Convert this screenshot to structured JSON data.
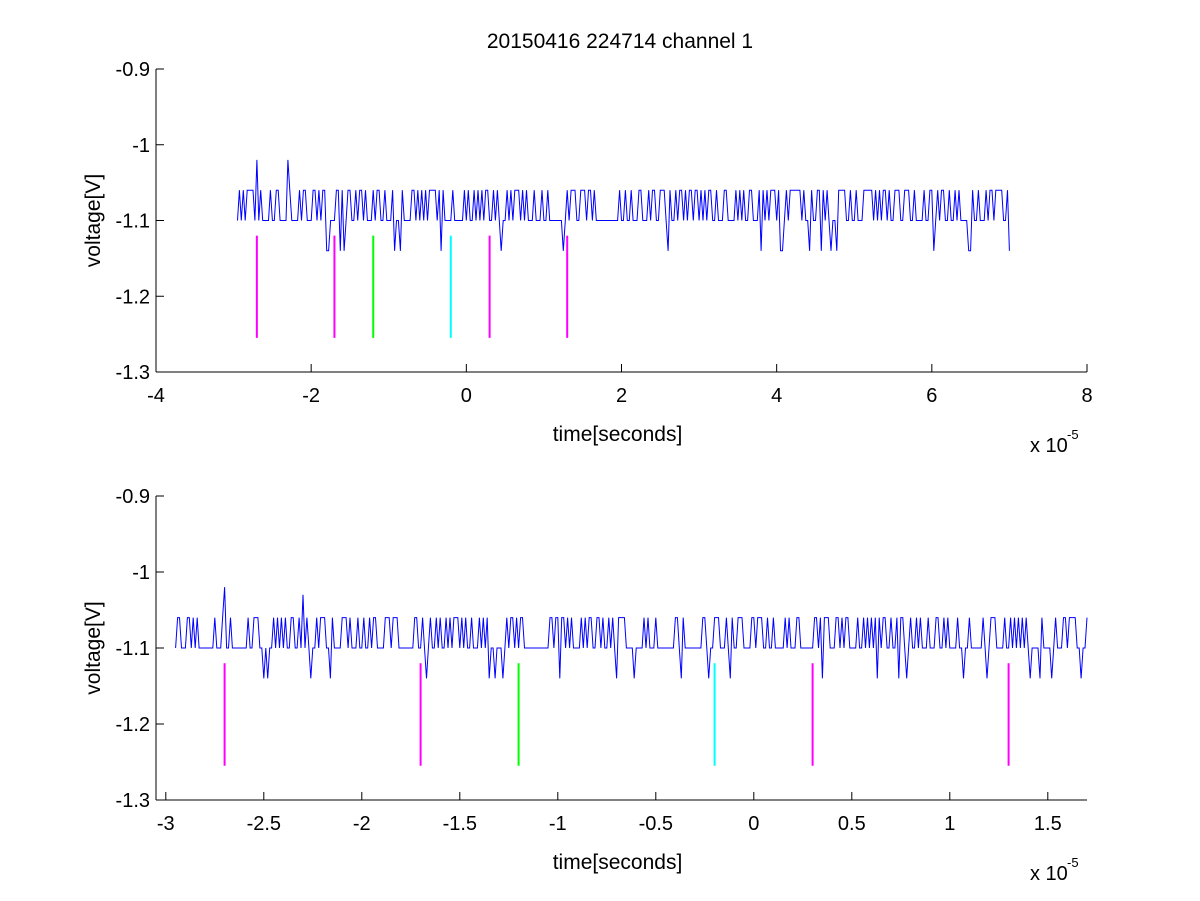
{
  "title": "20150416 224714 channel 1",
  "colors": {
    "signal": "#0000ff",
    "magenta": "#ff00ff",
    "green": "#00ff00",
    "cyan": "#00ffff",
    "axis": "#000000"
  },
  "chart_data": [
    {
      "type": "line",
      "xlabel": "time[seconds]",
      "ylabel": "voltage[V]",
      "x_multiplier": {
        "base": "x 10",
        "exponent": "-5"
      },
      "xlim": [
        -4,
        8
      ],
      "ylim": [
        -1.3,
        -0.9
      ],
      "xticks": [
        -4,
        -2,
        0,
        2,
        4,
        6,
        8
      ],
      "xtick_labels": [
        "-4",
        "-2",
        "0",
        "2",
        "4",
        "6",
        "8"
      ],
      "yticks": [
        -1.3,
        -1.2,
        -1.1,
        -1.0,
        -0.9
      ],
      "ytick_labels": [
        "-1.3",
        "-1.2",
        "-1.1",
        "-1",
        "-0.9"
      ],
      "series": [
        {
          "color": "#0000ff",
          "x_range": [
            -2.95,
            7.0
          ],
          "x_step": 0.025,
          "baseline": -1.1,
          "high": -1.06,
          "low_dip": -1.14,
          "spikes": [
            {
              "x": -2.7,
              "y": -1.02
            },
            {
              "x": -2.3,
              "y": -1.02
            }
          ]
        }
      ],
      "markers": [
        {
          "x": -2.7,
          "y_top": -1.12,
          "y_bottom": -1.255,
          "color": "#ff00ff"
        },
        {
          "x": -1.7,
          "y_top": -1.12,
          "y_bottom": -1.255,
          "color": "#ff00ff"
        },
        {
          "x": -1.2,
          "y_top": -1.12,
          "y_bottom": -1.255,
          "color": "#00ff00"
        },
        {
          "x": -0.2,
          "y_top": -1.12,
          "y_bottom": -1.255,
          "color": "#00ffff"
        },
        {
          "x": 0.3,
          "y_top": -1.12,
          "y_bottom": -1.255,
          "color": "#ff00ff"
        },
        {
          "x": 1.3,
          "y_top": -1.12,
          "y_bottom": -1.255,
          "color": "#ff00ff"
        }
      ]
    },
    {
      "type": "line",
      "xlabel": "time[seconds]",
      "ylabel": "voltage[V]",
      "x_multiplier": {
        "base": "x 10",
        "exponent": "-5"
      },
      "xlim": [
        -3.05,
        1.7
      ],
      "ylim": [
        -1.3,
        -0.9
      ],
      "xticks": [
        -3,
        -2.5,
        -2,
        -1.5,
        -1,
        -0.5,
        0,
        0.5,
        1,
        1.5
      ],
      "xtick_labels": [
        "-3",
        "-2.5",
        "-2",
        "-1.5",
        "-1",
        "-0.5",
        "0",
        "0.5",
        "1",
        "1.5"
      ],
      "yticks": [
        -1.3,
        -1.2,
        -1.1,
        -1.0,
        -0.9
      ],
      "ytick_labels": [
        "-1.3",
        "-1.2",
        "-1.1",
        "-1",
        "-0.9"
      ],
      "series": [
        {
          "color": "#0000ff",
          "x_range": [
            -2.95,
            1.7
          ],
          "x_step": 0.01,
          "baseline": -1.1,
          "high": -1.06,
          "low_dip": -1.14,
          "spikes": [
            {
              "x": -2.7,
              "y": -1.02
            },
            {
              "x": -2.3,
              "y": -1.03
            }
          ]
        }
      ],
      "markers": [
        {
          "x": -2.7,
          "y_top": -1.12,
          "y_bottom": -1.255,
          "color": "#ff00ff"
        },
        {
          "x": -1.7,
          "y_top": -1.12,
          "y_bottom": -1.255,
          "color": "#ff00ff"
        },
        {
          "x": -1.2,
          "y_top": -1.12,
          "y_bottom": -1.255,
          "color": "#00ff00"
        },
        {
          "x": -0.2,
          "y_top": -1.12,
          "y_bottom": -1.255,
          "color": "#00ffff"
        },
        {
          "x": 0.3,
          "y_top": -1.12,
          "y_bottom": -1.255,
          "color": "#ff00ff"
        },
        {
          "x": 1.3,
          "y_top": -1.12,
          "y_bottom": -1.255,
          "color": "#ff00ff"
        }
      ]
    }
  ]
}
